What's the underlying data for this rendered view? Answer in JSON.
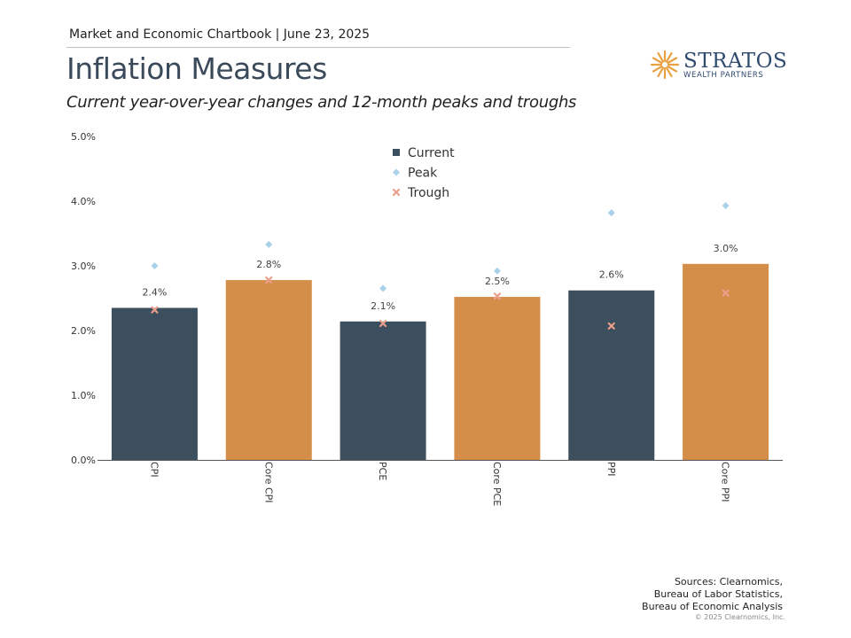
{
  "header": {
    "top_line": "Market and Economic Chartbook | June 23, 2025",
    "title": "Inflation Measures",
    "subtitle": "Current year-over-year changes and 12-month peaks and troughs"
  },
  "logo": {
    "name": "STRATOS",
    "tagline": "WEALTH PARTNERS",
    "color": "#2e4a6e",
    "mark_color": "#e8a040"
  },
  "chart_data": {
    "type": "bar",
    "categories": [
      "CPI",
      "Core CPI",
      "PCE",
      "Core PCE",
      "PPI",
      "Core PPI"
    ],
    "series": [
      {
        "name": "Current",
        "values": [
          2.35,
          2.78,
          2.14,
          2.52,
          2.62,
          3.03
        ],
        "data_labels": [
          "2.4%",
          "2.8%",
          "2.1%",
          "2.5%",
          "2.6%",
          "3.0%"
        ],
        "colors": [
          "#3c4f5e",
          "#d58d4a",
          "#3c4f5e",
          "#d58d4a",
          "#3c4f5e",
          "#d58d4a"
        ]
      },
      {
        "name": "Peak",
        "values": [
          3.0,
          3.33,
          2.65,
          2.92,
          3.82,
          3.93
        ],
        "color": "#a9d1ea",
        "marker": "diamond"
      },
      {
        "name": "Trough",
        "values": [
          2.32,
          2.78,
          2.11,
          2.53,
          2.07,
          2.58
        ],
        "color": "#ec9f8a",
        "marker": "x"
      }
    ],
    "ylim": [
      0,
      5
    ],
    "yticks": [
      "0.0%",
      "1.0%",
      "2.0%",
      "3.0%",
      "4.0%",
      "5.0%"
    ],
    "ytick_values": [
      0,
      1,
      2,
      3,
      4,
      5
    ],
    "grid": false,
    "legend_position": "top-center"
  },
  "footer": {
    "sources": [
      "Sources: Clearnomics,",
      "Bureau of Labor Statistics,",
      "Bureau of Economic Analysis"
    ],
    "copyright": "© 2025 Clearnomics, Inc."
  }
}
